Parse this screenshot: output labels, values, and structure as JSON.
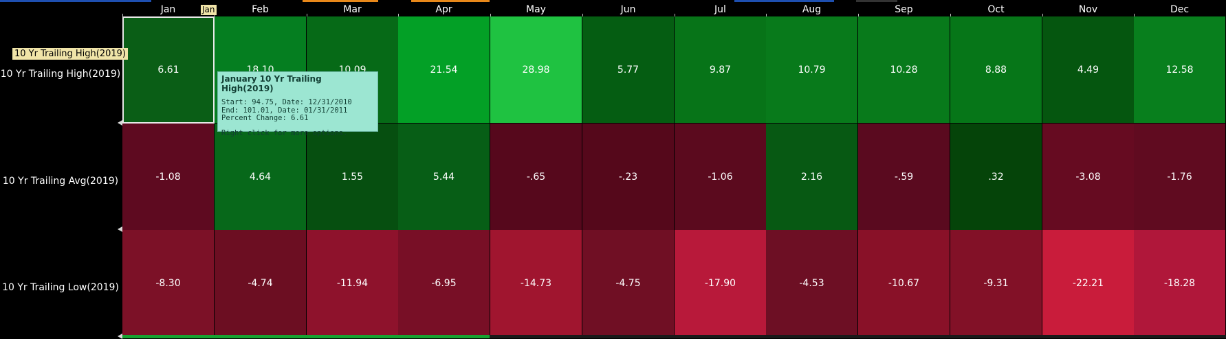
{
  "months": [
    "Jan",
    "Feb",
    "Mar",
    "Apr",
    "May",
    "Jun",
    "Jul",
    "Aug",
    "Sep",
    "Oct",
    "Nov",
    "Dec"
  ],
  "rows": [
    {
      "label": "10 Yr Trailing High(2019)",
      "values": [
        "6.61",
        "18.10",
        "10.09",
        "21.54",
        "28.98",
        "5.77",
        "9.87",
        "10.79",
        "10.28",
        "8.88",
        "4.49",
        "12.58"
      ],
      "colors": [
        "#0a5e16",
        "#057e20",
        "#066a17",
        "#03a026",
        "#1fc241",
        "#055d12",
        "#077418",
        "#087a1b",
        "#087a1b",
        "#067618",
        "#05560f",
        "#087f1d"
      ]
    },
    {
      "label": "10 Yr Trailing Avg(2019)",
      "values": [
        "-1.08",
        "4.64",
        "1.55",
        "5.44",
        "-.65",
        "-.23",
        "-1.06",
        "2.16",
        "-.59",
        ".32",
        "-3.08",
        "-1.76"
      ],
      "colors": [
        "#5e0a20",
        "#07681a",
        "#064f10",
        "#075e16",
        "#56081c",
        "#55081b",
        "#5b0a1e",
        "#075913",
        "#5a0a1f",
        "#054409",
        "#660b21",
        "#600b20"
      ]
    },
    {
      "label": "10 Yr Trailing Low(2019)",
      "values": [
        "-8.30",
        "-4.74",
        "-11.94",
        "-6.95",
        "-14.73",
        "-4.75",
        "-17.90",
        "-4.53",
        "-10.67",
        "-9.31",
        "-22.21",
        "-18.28"
      ],
      "colors": [
        "#7c1127",
        "#6c0e22",
        "#8e122c",
        "#780f26",
        "#a0152f",
        "#700f24",
        "#b8193a",
        "#6d0f24",
        "#891128",
        "#821127",
        "#c91c3b",
        "#b0173a"
      ]
    }
  ],
  "selected_month_badge": "Jan",
  "selected_row_badge": "10 Yr Trailing High(2019)",
  "tooltip": {
    "title": "January 10 Yr Trailing High(2019)",
    "start": "Start: 94.75, Date: 12/31/2010",
    "end": "End: 101.01, Date: 01/31/2011",
    "change": "Percent Change: 6.61",
    "hint": "Right click for more options."
  }
}
